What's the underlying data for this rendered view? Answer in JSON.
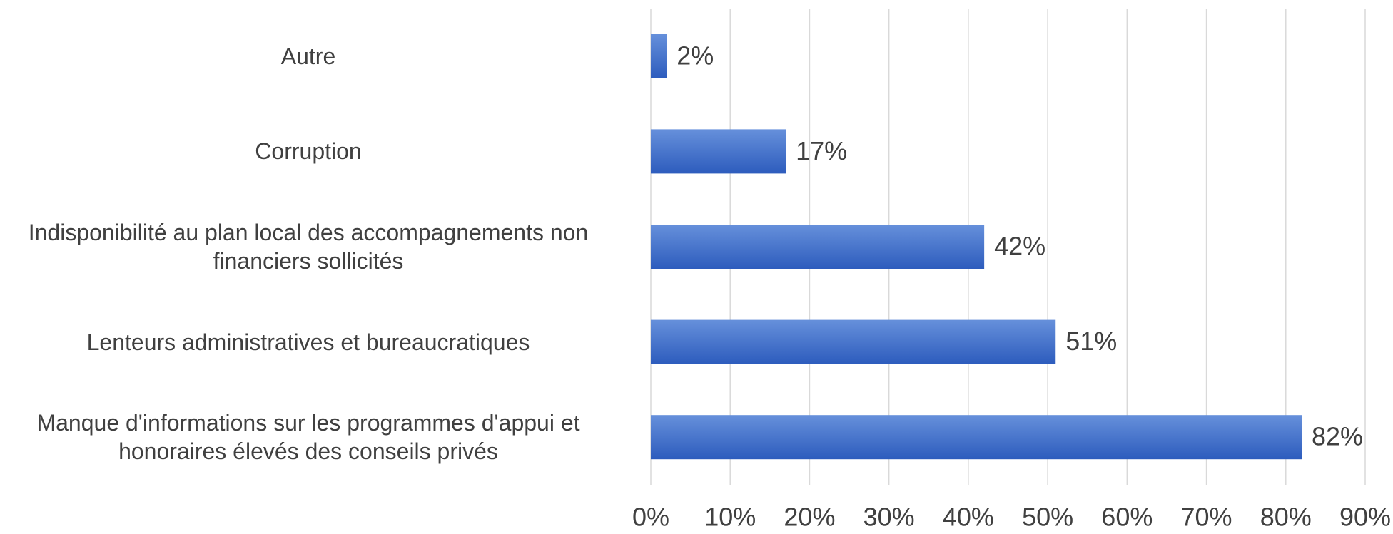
{
  "chart_data": {
    "type": "bar",
    "orientation": "horizontal",
    "categories": [
      "Autre",
      "Corruption",
      "Indisponibilité au plan local des accompagnements non financiers sollicités",
      "Lenteurs administratives et bureaucratiques",
      "Manque d'informations sur les programmes d'appui et honoraires élevés des conseils privés"
    ],
    "values": [
      2,
      17,
      42,
      51,
      82
    ],
    "value_labels": [
      "2%",
      "17%",
      "42%",
      "51%",
      "82%"
    ],
    "color": "#3a68c8",
    "xlim": [
      0,
      90
    ],
    "xticks": [
      {
        "value": 0,
        "label": "0%"
      },
      {
        "value": 10,
        "label": "10%"
      },
      {
        "value": 20,
        "label": "20%"
      },
      {
        "value": 30,
        "label": "30%"
      },
      {
        "value": 40,
        "label": "40%"
      },
      {
        "value": 50,
        "label": "50%"
      },
      {
        "value": 60,
        "label": "60%"
      },
      {
        "value": 70,
        "label": "70%"
      },
      {
        "value": 80,
        "label": "80%"
      },
      {
        "value": 90,
        "label": "90%"
      }
    ],
    "grid": true
  }
}
